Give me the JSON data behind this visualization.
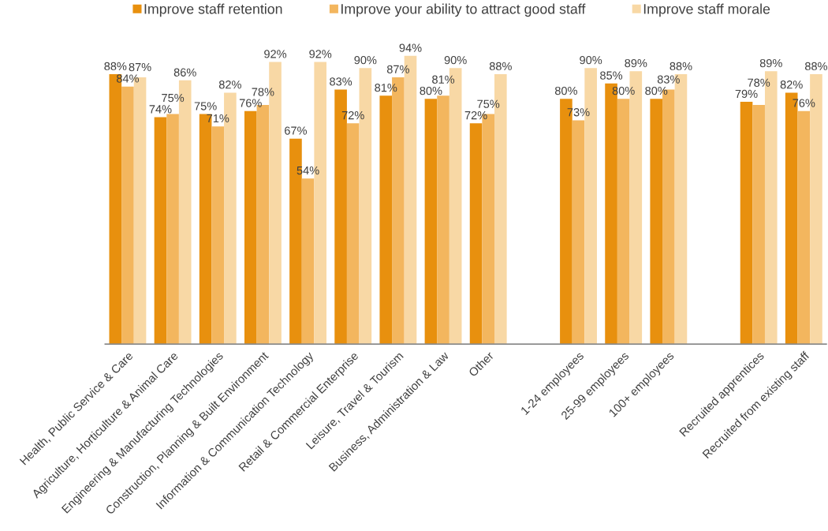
{
  "chart_data": {
    "type": "bar",
    "categories": [
      "Health, Public Service & Care",
      "Agriculture, Horticulture & Animal Care",
      "Engineering & Manufacturing Technologies",
      "Construction, Planning & Built Environment",
      "Information & Communication Technology",
      "Retail & Commercial Enterprise",
      "Leisure, Travel & Tourism",
      "Business, Administration & Law",
      "Other",
      null,
      "1-24 employees",
      "25-99 employees",
      "100+ employees",
      null,
      "Recruited apprentices",
      "Recruited from existing staff"
    ],
    "series": [
      {
        "name": "Improve staff retention",
        "color": "#e8900e",
        "values": [
          88,
          74,
          75,
          76,
          67,
          83,
          81,
          80,
          72,
          null,
          80,
          85,
          80,
          null,
          79,
          82
        ],
        "value_labels": [
          "88%",
          "74%",
          "75%",
          "76%",
          "67%",
          "83%",
          "81%",
          "80%",
          "72%",
          null,
          "80%",
          "85%",
          "80%",
          null,
          "79%",
          "82%"
        ]
      },
      {
        "name": "Improve your ability to attract good staff",
        "color": "#f3b65e",
        "values": [
          84,
          75,
          71,
          78,
          54,
          72,
          87,
          81,
          75,
          null,
          73,
          80,
          83,
          null,
          78,
          76
        ],
        "value_labels": [
          "84%",
          "75%",
          "71%",
          "78%",
          "54%",
          "72%",
          "87%",
          "81%",
          "75%",
          null,
          "73%",
          "80%",
          "83%",
          null,
          "78%",
          "76%"
        ]
      },
      {
        "name": "Improve staff morale",
        "color": "#f8d8a5",
        "values": [
          87,
          86,
          82,
          92,
          92,
          90,
          94,
          90,
          88,
          null,
          90,
          89,
          88,
          null,
          89,
          88
        ],
        "value_labels": [
          "87%",
          "86%",
          "82%",
          "92%",
          "92%",
          "90%",
          "94%",
          "90%",
          "88%",
          null,
          "90%",
          "89%",
          "88%",
          null,
          "89%",
          "88%"
        ]
      }
    ],
    "legend": "top",
    "tick_labels": "x"
  }
}
